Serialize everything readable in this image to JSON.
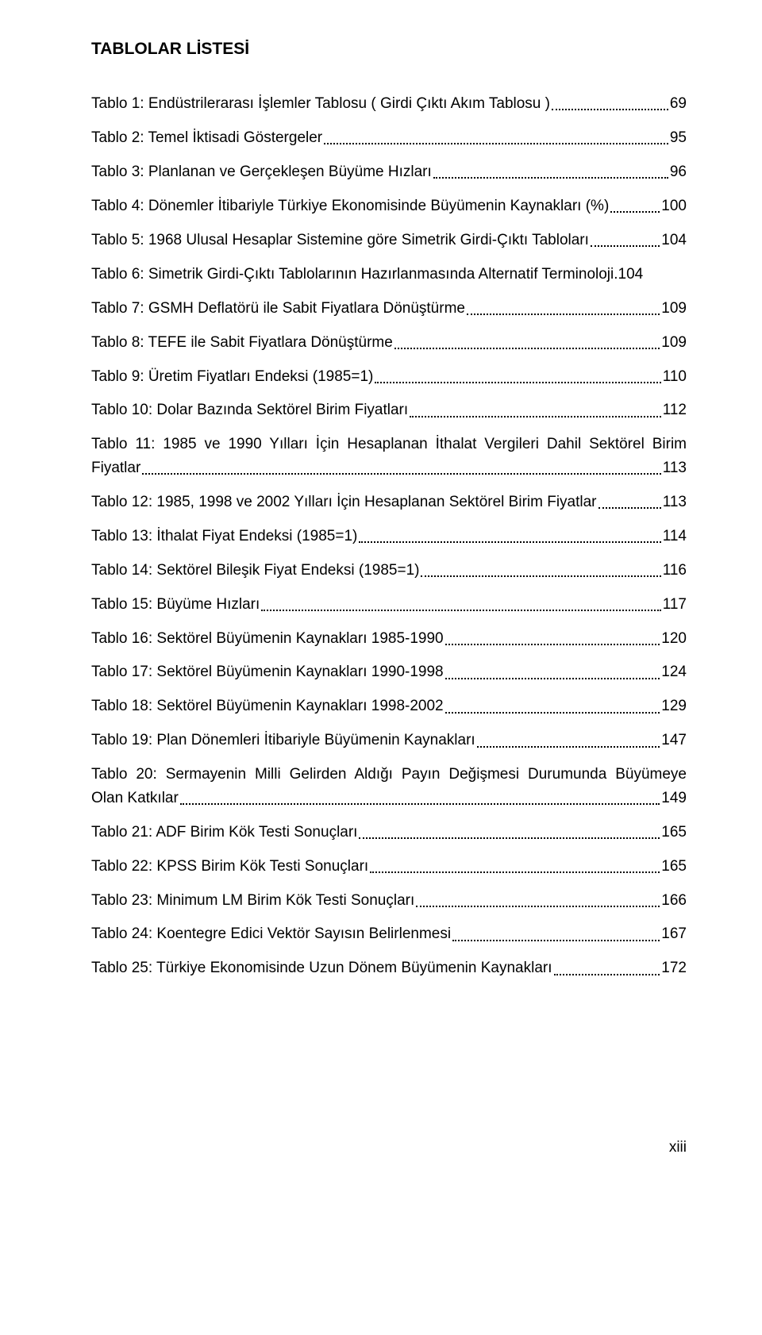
{
  "title": "TABLOLAR LİSTESİ",
  "entries": [
    {
      "label": "Tablo 1: Endüstrilerarası İşlemler Tablosu ( Girdi Çıktı Akım Tablosu )",
      "page": "69"
    },
    {
      "label": "Tablo 2: Temel İktisadi Göstergeler",
      "page": "95"
    },
    {
      "label": "Tablo 3: Planlanan ve Gerçekleşen Büyüme Hızları",
      "page": "96"
    },
    {
      "label": "Tablo 4: Dönemler İtibariyle Türkiye Ekonomisinde Büyümenin Kaynakları (%)",
      "page": "100"
    },
    {
      "label": "Tablo 5: 1968 Ulusal Hesaplar Sistemine göre Simetrik Girdi-Çıktı Tabloları",
      "page": "104"
    },
    {
      "label": "Tablo 6: Simetrik Girdi-Çıktı Tablolarının Hazırlanmasında Alternatif Terminoloji.",
      "page": "104",
      "nodots": true
    },
    {
      "label": "Tablo 7: GSMH Deflatörü ile Sabit Fiyatlara Dönüştürme",
      "page": "109"
    },
    {
      "label": "Tablo 8: TEFE ile Sabit Fiyatlara Dönüştürme",
      "page": "109"
    },
    {
      "label": "Tablo 9: Üretim Fiyatları Endeksi (1985=1)",
      "page": "110"
    },
    {
      "label": "Tablo 10: Dolar Bazında Sektörel Birim Fiyatları",
      "page": "112"
    },
    {
      "multiline": true,
      "line1": "Tablo 11: 1985 ve 1990 Yılları İçin Hesaplanan İthalat Vergileri Dahil Sektörel Birim",
      "line2": "Fiyatlar",
      "page": "113"
    },
    {
      "label": "Tablo 12: 1985, 1998 ve 2002 Yılları İçin Hesaplanan Sektörel Birim Fiyatlar",
      "page": "113"
    },
    {
      "label": "Tablo 13: İthalat Fiyat Endeksi (1985=1)",
      "page": "114"
    },
    {
      "label": "Tablo 14: Sektörel Bileşik Fiyat Endeksi (1985=1)",
      "page": "116"
    },
    {
      "label": "Tablo 15: Büyüme Hızları",
      "page": "117"
    },
    {
      "label": "Tablo 16: Sektörel Büyümenin Kaynakları 1985-1990",
      "page": "120"
    },
    {
      "label": "Tablo 17: Sektörel Büyümenin Kaynakları 1990-1998",
      "page": "124"
    },
    {
      "label": "Tablo 18: Sektörel Büyümenin Kaynakları 1998-2002",
      "page": "129"
    },
    {
      "label": "Tablo 19: Plan Dönemleri İtibariyle Büyümenin Kaynakları",
      "page": "147"
    },
    {
      "multiline": true,
      "line1": "Tablo 20: Sermayenin  Milli Gelirden Aldığı Payın Değişmesi Durumunda Büyümeye",
      "line2": "Olan Katkılar",
      "page": "149"
    },
    {
      "label": "Tablo 21: ADF Birim Kök Testi Sonuçları",
      "page": "165"
    },
    {
      "label": "Tablo 22: KPSS Birim Kök Testi Sonuçları",
      "page": "165"
    },
    {
      "label": "Tablo 23: Minimum LM Birim Kök Testi Sonuçları",
      "page": "166"
    },
    {
      "label": "Tablo 24: Koentegre Edici Vektör Sayısın Belirlenmesi",
      "page": "167"
    },
    {
      "label": "Tablo 25: Türkiye Ekonomisinde Uzun Dönem Büyümenin Kaynakları",
      "page": "172"
    }
  ],
  "footer": "xiii"
}
